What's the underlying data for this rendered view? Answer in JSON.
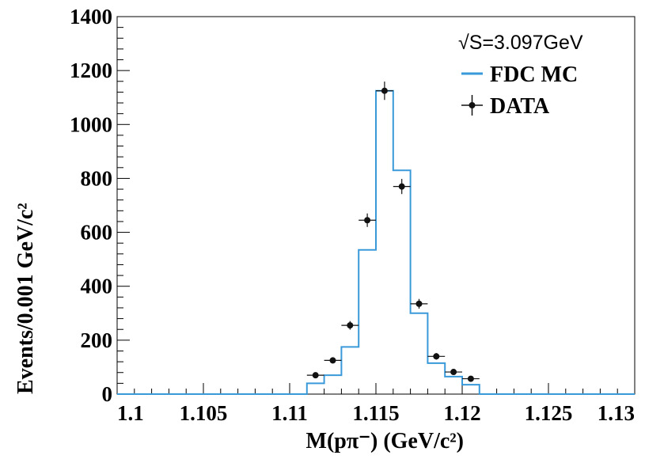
{
  "chart_data": {
    "type": "histogram",
    "xlabel": "M(pπ⁻) (GeV/c²)",
    "ylabel": "Events/0.001 GeV/c²",
    "xlim": [
      1.1,
      1.13
    ],
    "ylim": [
      0,
      1400
    ],
    "x_ticks": [
      "1.1",
      "1.105",
      "1.11",
      "1.115",
      "1.12",
      "1.125",
      "1.13"
    ],
    "y_ticks": [
      "0",
      "200",
      "400",
      "600",
      "800",
      "1000",
      "1200",
      "1400"
    ],
    "legend_header": "√S=3.097GeV",
    "legend_placement": "top-right",
    "grid": false,
    "series": [
      {
        "name": "FDC MC",
        "kind": "step",
        "color": "#3a9ad9",
        "bin_edges": [
          1.1,
          1.111,
          1.112,
          1.113,
          1.114,
          1.115,
          1.116,
          1.117,
          1.118,
          1.119,
          1.12,
          1.121,
          1.13
        ],
        "values": [
          0,
          40,
          70,
          175,
          535,
          1125,
          830,
          300,
          115,
          65,
          35,
          0
        ]
      },
      {
        "name": "DATA",
        "kind": "points",
        "color": "#111111",
        "x": [
          1.1115,
          1.1125,
          1.1135,
          1.1145,
          1.1155,
          1.1165,
          1.1175,
          1.1185,
          1.1195,
          1.1205
        ],
        "y": [
          70,
          125,
          255,
          645,
          1125,
          770,
          335,
          140,
          82,
          57
        ],
        "yerr": [
          9,
          11,
          16,
          25,
          34,
          28,
          18,
          12,
          9,
          8
        ],
        "xerr": 0.0005
      }
    ]
  }
}
